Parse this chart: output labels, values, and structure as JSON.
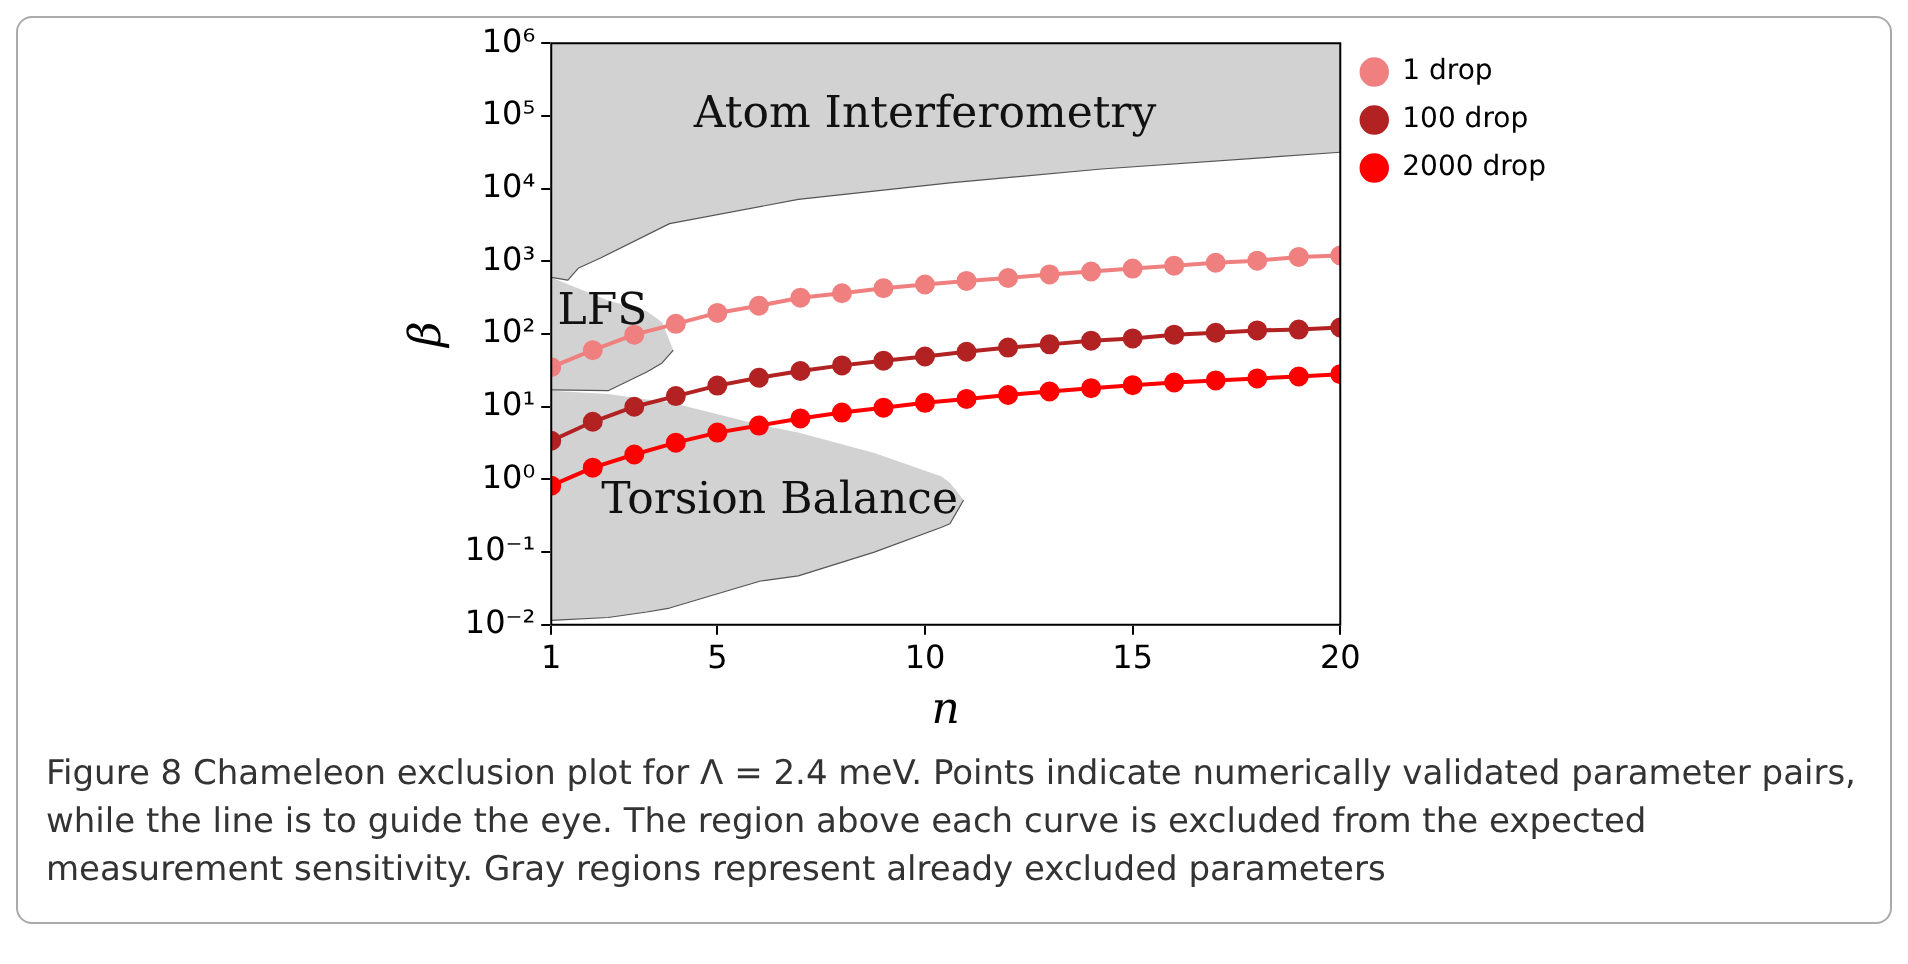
{
  "chart_data": {
    "type": "line",
    "xlabel": "n",
    "ylabel": "β",
    "log": "y",
    "grid": false,
    "legend": "top right",
    "marker": "circle",
    "line_style": "solid",
    "xlim": [
      1,
      20
    ],
    "xticks": [
      1,
      5,
      10,
      15,
      20
    ],
    "ylim": [
      0.01,
      1000000
    ],
    "yticks": [
      {
        "value": 0.01,
        "label": "10⁻²"
      },
      {
        "value": 0.1,
        "label": "10⁻¹"
      },
      {
        "value": 1,
        "label": "10⁰"
      },
      {
        "value": 10,
        "label": "10¹"
      },
      {
        "value": 100,
        "label": "10²"
      },
      {
        "value": 1000,
        "label": "10³"
      },
      {
        "value": 10000,
        "label": "10⁴"
      },
      {
        "value": 100000,
        "label": "10⁵"
      },
      {
        "value": 1000000,
        "label": "10⁶"
      }
    ],
    "x": [
      1,
      2,
      3,
      4,
      5,
      6,
      7,
      8,
      9,
      10,
      11,
      12,
      13,
      14,
      15,
      16,
      17,
      18,
      19,
      20
    ],
    "series": [
      {
        "type": "line",
        "marker": "none",
        "color": "#555555",
        "x": [
          1,
          1.4,
          1.66,
          2.2,
          3.85,
          6.95,
          10.6,
          14.25,
          20
        ],
        "values": [
          600,
          550,
          810,
          1120,
          3300,
          7100,
          12000,
          18600,
          31600
        ],
        "upper": [
          1000000,
          1000000,
          1000000,
          1000000,
          1000000,
          1000000,
          1000000,
          1000000,
          1000000
        ],
        "lower": [
          600,
          550,
          810,
          1120,
          3300,
          7100,
          12000,
          18600,
          31600
        ]
      },
      {
        "type": "line",
        "marker": "none",
        "color": "#555555",
        "x": [
          1,
          2.37,
          3.3,
          3.67,
          3.94
        ],
        "values": [
          17,
          16.6,
          30,
          40,
          60
        ],
        "upper": [
          600,
          290,
          205,
          145,
          60
        ],
        "lower": [
          17,
          16.6,
          30,
          40,
          60
        ]
      },
      {
        "type": "line",
        "marker": "none",
        "color": "#555555",
        "x": [
          1,
          2.37,
          3.3,
          3.85,
          6.04,
          6.95,
          8.78,
          10.4,
          10.6,
          10.93
        ],
        "values": [
          0.0115,
          0.0126,
          0.015,
          0.017,
          0.04,
          0.047,
          0.1,
          0.22,
          0.245,
          0.52
        ],
        "upper": [
          16.6,
          15,
          12.6,
          11.5,
          5.6,
          4.4,
          2.3,
          1.1,
          0.9,
          0.52
        ],
        "lower": [
          0.0115,
          0.0126,
          0.015,
          0.017,
          0.04,
          0.047,
          0.1,
          0.22,
          0.245,
          0.52
        ]
      },
      {
        "name": "1 drop",
        "color": "#f08080",
        "values": [
          35,
          60,
          98,
          138,
          195,
          245,
          316,
          363,
          427,
          480,
          537,
          590,
          660,
          724,
          794,
          871,
          955,
          1020,
          1150,
          1200
        ]
      },
      {
        "name": "100 drop",
        "color": "#b22222",
        "values": [
          3.4,
          6.2,
          10,
          14,
          19.5,
          25,
          31,
          37,
          43,
          49,
          57,
          65,
          72,
          81,
          87,
          98,
          104,
          112,
          115,
          123
        ]
      },
      {
        "name": "2000 drop",
        "color": "#ff0000",
        "values": [
          0.82,
          1.45,
          2.2,
          3.2,
          4.4,
          5.5,
          6.9,
          8.3,
          9.7,
          11.3,
          12.8,
          14.5,
          16.2,
          18,
          19.8,
          21.5,
          23,
          24.5,
          26,
          28
        ]
      }
    ],
    "annotations": [
      "Atom Interferometry",
      "LFS",
      "Torsion Balance",
      "Figure 8  Chameleon exclusion plot for Λ = 2.4 meV. Points indicate numerically validated parameter pairs, while the line is to guide the eye. The region above each curve is excluded from the expected measurement sensitivity. Gray regions represent already excluded parameters"
    ]
  }
}
